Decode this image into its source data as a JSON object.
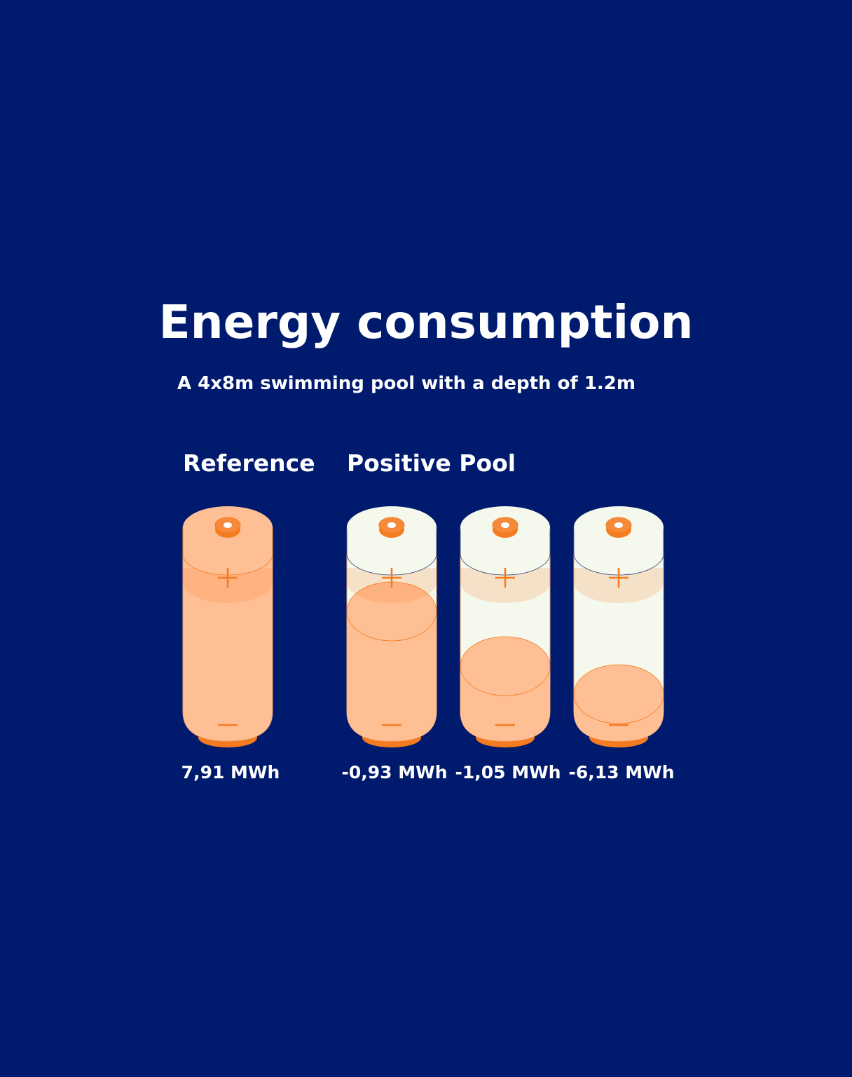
{
  "title": "Energy consumption",
  "subtitle": "A 4x8m swimming pool with a depth of 1.2m",
  "groups": [
    {
      "label": "Reference"
    },
    {
      "label": "Positive Pool"
    }
  ],
  "batteries": [
    {
      "label": "7,91 MWh"
    },
    {
      "label": "-0,93 MWh"
    },
    {
      "label": "-1,05 MWh"
    },
    {
      "label": "-6,13 MWh"
    }
  ]
}
